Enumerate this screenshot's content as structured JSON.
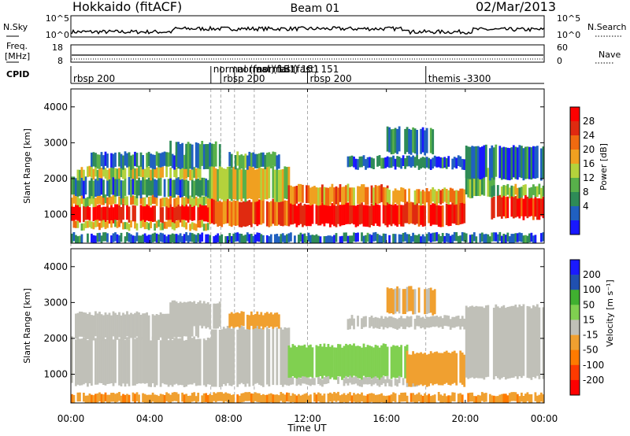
{
  "header": {
    "station": "Hokkaido (fitACF)",
    "beam": "Beam 01",
    "date": "02/Mar/2013"
  },
  "noise_panel": {
    "left_label": "N.Sky",
    "right_label": "N.Search",
    "left_ticks": [
      "10^5",
      "10^0"
    ],
    "right_ticks": [
      "10^5",
      "10^0"
    ]
  },
  "freq_panel": {
    "left_label_line1": "Freq.",
    "left_label_line2": "[MHz]",
    "right_label": "Nave",
    "left_ticks": [
      "18",
      "8"
    ],
    "right_ticks": [
      "60",
      "0"
    ]
  },
  "cpid": {
    "label": "CPID",
    "entries": [
      {
        "hour": 0.0,
        "text": "rbsp 200"
      },
      {
        "hour": 7.1,
        "text": "normal (fast) 151"
      },
      {
        "hour": 7.6,
        "text": "rbsp 200"
      },
      {
        "hour": 8.3,
        "text": "normal (fast) 151"
      },
      {
        "hour": 9.3,
        "text": "normal (fast) 151"
      },
      {
        "hour": 12.0,
        "text": "rbsp 200"
      },
      {
        "hour": 18.0,
        "text": "themis -3300"
      }
    ]
  },
  "x_axis": {
    "label": "Time UT",
    "ticks": [
      "00:00",
      "04:00",
      "08:00",
      "12:00",
      "16:00",
      "20:00",
      "00:00"
    ],
    "range_hours": [
      0,
      24
    ]
  },
  "colors": {
    "power_scale": [
      "#1818ff",
      "#2060c0",
      "#2e8b57",
      "#58b04a",
      "#b4d23c",
      "#f0a020",
      "#f06a10",
      "#e02a10",
      "#ff0000"
    ],
    "velocity_scale": [
      "#ff0000",
      "#ff3a00",
      "#ff7a00",
      "#f0a030",
      "#c0c0b8",
      "#80d050",
      "#40b030",
      "#2050b0",
      "#1a1aff"
    ]
  },
  "chart_data": [
    {
      "type": "heatmap",
      "name": "power",
      "ylabel": "Slant Range [km]",
      "ylim": [
        200,
        4500
      ],
      "yticks": [
        "1000",
        "2000",
        "3000",
        "4000"
      ],
      "colorbar": {
        "label": "Power [dB]",
        "ticks": [
          "28",
          "24",
          "20",
          "16",
          "12",
          "8",
          "4"
        ],
        "range": [
          0,
          32
        ]
      },
      "bands": [
        {
          "t0": 0.0,
          "t1": 7.0,
          "r0": 800,
          "r1": 1250,
          "value": 30
        },
        {
          "t0": 0.0,
          "t1": 7.0,
          "r0": 1250,
          "r1": 1500,
          "value": 18
        },
        {
          "t0": 0.0,
          "t1": 7.0,
          "r0": 600,
          "r1": 800,
          "value": 18
        },
        {
          "t0": 0.0,
          "t1": 7.0,
          "r0": 1500,
          "r1": 2000,
          "value": 8
        },
        {
          "t0": 0.2,
          "t1": 6.5,
          "r0": 2000,
          "r1": 2300,
          "value": 16
        },
        {
          "t0": 1.0,
          "t1": 5.8,
          "r0": 2300,
          "r1": 2700,
          "value": 8
        },
        {
          "t0": 5.0,
          "t1": 7.5,
          "r0": 2300,
          "r1": 3000,
          "value": 10
        },
        {
          "t0": 7.0,
          "t1": 11.0,
          "r0": 700,
          "r1": 1400,
          "value": 24
        },
        {
          "t0": 7.0,
          "t1": 11.0,
          "r0": 1400,
          "r1": 2300,
          "value": 16
        },
        {
          "t0": 8.0,
          "t1": 10.5,
          "r0": 2300,
          "r1": 2700,
          "value": 10
        },
        {
          "t0": 11.0,
          "t1": 16.0,
          "r0": 700,
          "r1": 1300,
          "value": 30
        },
        {
          "t0": 11.0,
          "t1": 16.0,
          "r0": 1300,
          "r1": 1800,
          "value": 22
        },
        {
          "t0": 16.0,
          "t1": 20.0,
          "r0": 700,
          "r1": 1300,
          "value": 28
        },
        {
          "t0": 16.0,
          "t1": 20.0,
          "r0": 1300,
          "r1": 1700,
          "value": 20
        },
        {
          "t0": 14.0,
          "t1": 20.0,
          "r0": 2300,
          "r1": 2600,
          "value": 6
        },
        {
          "t0": 16.0,
          "t1": 18.5,
          "r0": 2700,
          "r1": 3400,
          "value": 8
        },
        {
          "t0": 20.0,
          "t1": 21.5,
          "r0": 1500,
          "r1": 2300,
          "value": 12
        },
        {
          "t0": 21.3,
          "t1": 24.0,
          "r0": 900,
          "r1": 1500,
          "value": 28
        },
        {
          "t0": 21.3,
          "t1": 24.0,
          "r0": 1500,
          "r1": 1800,
          "value": 14
        },
        {
          "t0": 20.0,
          "t1": 24.0,
          "r0": 2000,
          "r1": 2900,
          "value": 6
        },
        {
          "t0": 0.0,
          "t1": 24.0,
          "r0": 200,
          "r1": 450,
          "value": 6
        }
      ]
    },
    {
      "type": "heatmap",
      "name": "velocity",
      "ylabel": "Slant Range [km]",
      "ylim": [
        200,
        4500
      ],
      "yticks": [
        "1000",
        "2000",
        "3000",
        "4000"
      ],
      "colorbar": {
        "label": "Velocity [m s⁻¹]",
        "ticks": [
          "200",
          "100",
          "50",
          "15",
          "-15",
          "-50",
          "-100",
          "-200"
        ]
      },
      "bands": [
        {
          "t0": 0.0,
          "t1": 7.0,
          "r0": 700,
          "r1": 2000,
          "value": 0
        },
        {
          "t0": 0.2,
          "t1": 6.5,
          "r0": 2000,
          "r1": 2700,
          "value": 0
        },
        {
          "t0": 5.0,
          "t1": 7.5,
          "r0": 2300,
          "r1": 3000,
          "value": 0
        },
        {
          "t0": 7.0,
          "t1": 11.0,
          "r0": 700,
          "r1": 2300,
          "value": 0
        },
        {
          "t0": 8.0,
          "t1": 10.5,
          "r0": 2300,
          "r1": 2700,
          "value": -30
        },
        {
          "t0": 11.0,
          "t1": 17.0,
          "r0": 900,
          "r1": 1800,
          "value": 30
        },
        {
          "t0": 11.0,
          "t1": 13.0,
          "r0": 700,
          "r1": 900,
          "value": 0
        },
        {
          "t0": 13.5,
          "t1": 18.0,
          "r0": 700,
          "r1": 900,
          "value": 0
        },
        {
          "t0": 17.0,
          "t1": 20.0,
          "r0": 700,
          "r1": 1600,
          "value": -30
        },
        {
          "t0": 14.0,
          "t1": 20.0,
          "r0": 2300,
          "r1": 2600,
          "value": 0
        },
        {
          "t0": 16.0,
          "t1": 18.5,
          "r0": 2700,
          "r1": 3400,
          "value": -20
        },
        {
          "t0": 20.0,
          "t1": 24.0,
          "r0": 900,
          "r1": 2900,
          "value": 0
        },
        {
          "t0": 0.0,
          "t1": 24.0,
          "r0": 200,
          "r1": 450,
          "value": -40
        }
      ]
    }
  ]
}
